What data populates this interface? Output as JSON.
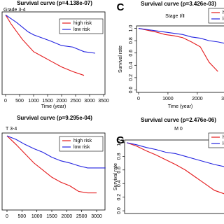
{
  "chart_data": [
    {
      "type": "line",
      "title": "Survival curve (p=4.138e-07)",
      "subtitle": "Grade 3-4",
      "xlabel": "Time (year)",
      "x": [
        0,
        200,
        400,
        600,
        800,
        1000,
        1300,
        1600,
        2000,
        2400,
        2800,
        3200
      ],
      "series": [
        {
          "name": "high risk",
          "color": "#e41a1c",
          "values": [
            1,
            0.88,
            0.78,
            0.68,
            0.6,
            0.52,
            0.46,
            0.4,
            0.32,
            0.26,
            0.21,
            null
          ]
        },
        {
          "name": "low risk",
          "color": "#2323e0",
          "values": [
            1,
            0.95,
            0.9,
            0.84,
            0.78,
            0.74,
            0.7,
            0.66,
            0.6,
            0.58,
            0.52,
            0.5
          ]
        }
      ],
      "xlim": [
        -125,
        3550
      ],
      "ylim": [
        -0.04,
        1.04
      ],
      "xticks": [
        0,
        500,
        1000,
        1500,
        2000,
        2500,
        3000,
        3500
      ]
    },
    {
      "type": "line",
      "panel_label": "C",
      "title": "Survival curve (p=3.426e-03)",
      "subtitle": "Stage Ⅰ/Ⅱ",
      "xlabel": "Time (year)",
      "ylabel": "Survival rate",
      "x": [
        0,
        300,
        600,
        900,
        1200,
        1500,
        1800,
        2100,
        2400,
        2700,
        3000
      ],
      "series": [
        {
          "name": "high risk",
          "color": "#e41a1c",
          "values": [
            1,
            0.97,
            0.94,
            0.9,
            0.88,
            0.85,
            0.78,
            0.7,
            0.45,
            0.3,
            null
          ]
        },
        {
          "name": "low risk",
          "color": "#2323e0",
          "values": [
            1,
            0.98,
            0.96,
            0.94,
            0.92,
            0.9,
            0.86,
            0.84,
            0.8,
            0.78,
            0.75
          ]
        }
      ],
      "xlim": [
        -70,
        3860
      ],
      "ylim": [
        -0.04,
        1.04
      ],
      "xticks": [
        0,
        1000,
        2000,
        3000
      ],
      "yticks": [
        {
          "value": 0,
          "label": "0.0"
        },
        0.2,
        0.4,
        0.6,
        0.8,
        {
          "value": 1,
          "label": "1.0"
        }
      ]
    },
    {
      "type": "line",
      "title": "Survival curve (p=9.295e-04)",
      "subtitle": "T 3-4",
      "x": [
        0,
        300,
        600,
        900,
        1200,
        1500,
        1800,
        2100,
        2400,
        2700,
        3000,
        3300
      ],
      "series": [
        {
          "name": "high risk",
          "color": "#e41a1c",
          "values": [
            1,
            0.88,
            0.75,
            0.62,
            0.52,
            0.42,
            0.35,
            0.3,
            0.22,
            0.2,
            0.2,
            null
          ]
        },
        {
          "name": "low risk",
          "color": "#2323e0",
          "values": [
            1,
            0.95,
            0.88,
            0.82,
            0.77,
            0.7,
            0.65,
            0.62,
            0.58,
            0.55,
            0.55,
            0.55
          ]
        }
      ],
      "xlim": [
        -164,
        3281
      ],
      "ylim": [
        -0.04,
        1.04
      ],
      "xticks": [
        0,
        500,
        1000,
        1500,
        2000,
        2500,
        3000
      ]
    },
    {
      "type": "line",
      "panel_label": "G",
      "title": "Survival curve (p=2.476e-06)",
      "subtitle": "M 0",
      "ylabel": "Survival rate",
      "x": [
        0,
        300,
        600,
        900,
        1200,
        1500,
        1800,
        2100,
        2400,
        2700,
        3000
      ],
      "series": [
        {
          "name": "high risk",
          "color": "#e41a1c",
          "values": [
            1,
            0.95,
            0.88,
            0.82,
            0.75,
            0.68,
            0.6,
            0.5,
            0.4,
            0.3,
            0.25
          ]
        },
        {
          "name": "low risk",
          "color": "#2323e0",
          "values": [
            1,
            0.97,
            0.93,
            0.9,
            0.86,
            0.84,
            0.8,
            0.76,
            0.72,
            0.68,
            0.65
          ]
        }
      ],
      "xlim": [
        -70,
        3860
      ],
      "ylim": [
        -0.04,
        1.04
      ],
      "yticks": [
        {
          "value": 0,
          "label": "0.0"
        },
        0.2,
        0.4,
        0.6,
        0.8,
        {
          "value": 1,
          "label": "1.0"
        }
      ]
    }
  ]
}
